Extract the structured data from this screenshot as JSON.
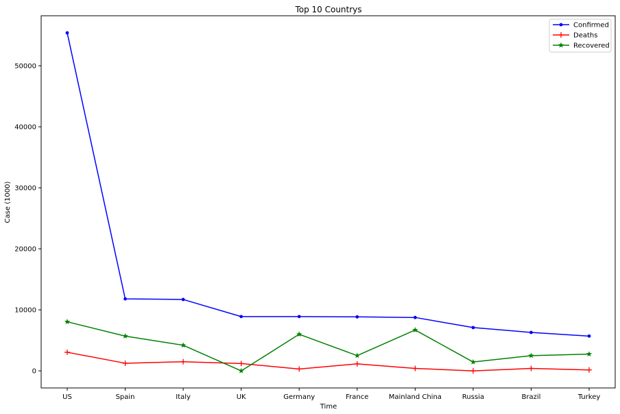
{
  "chart_data": {
    "type": "line",
    "title": "Top 10 Countrys",
    "xlabel": "Time",
    "ylabel": "Case (1000)",
    "categories": [
      "US",
      "Spain",
      "Italy",
      "UK",
      "Germany",
      "France",
      "Mainland China",
      "Russia",
      "Brazil",
      "Turkey"
    ],
    "ylim": [
      -2800,
      58200
    ],
    "yticks": [
      0,
      10000,
      20000,
      30000,
      40000,
      50000
    ],
    "grid": false,
    "legend_position": "top-right",
    "series": [
      {
        "name": "Confirmed",
        "color": "#0000ff",
        "marker": "dot",
        "values": [
          55400,
          11800,
          11700,
          8900,
          8900,
          8850,
          8750,
          7100,
          6300,
          5700
        ]
      },
      {
        "name": "Deaths",
        "color": "#ff0000",
        "marker": "plus",
        "values": [
          3050,
          1250,
          1500,
          1200,
          300,
          1150,
          400,
          0,
          400,
          150
        ]
      },
      {
        "name": "Recovered",
        "color": "#008000",
        "marker": "star",
        "values": [
          8050,
          5700,
          4200,
          0,
          6000,
          2500,
          6700,
          1450,
          2500,
          2750
        ]
      }
    ]
  }
}
